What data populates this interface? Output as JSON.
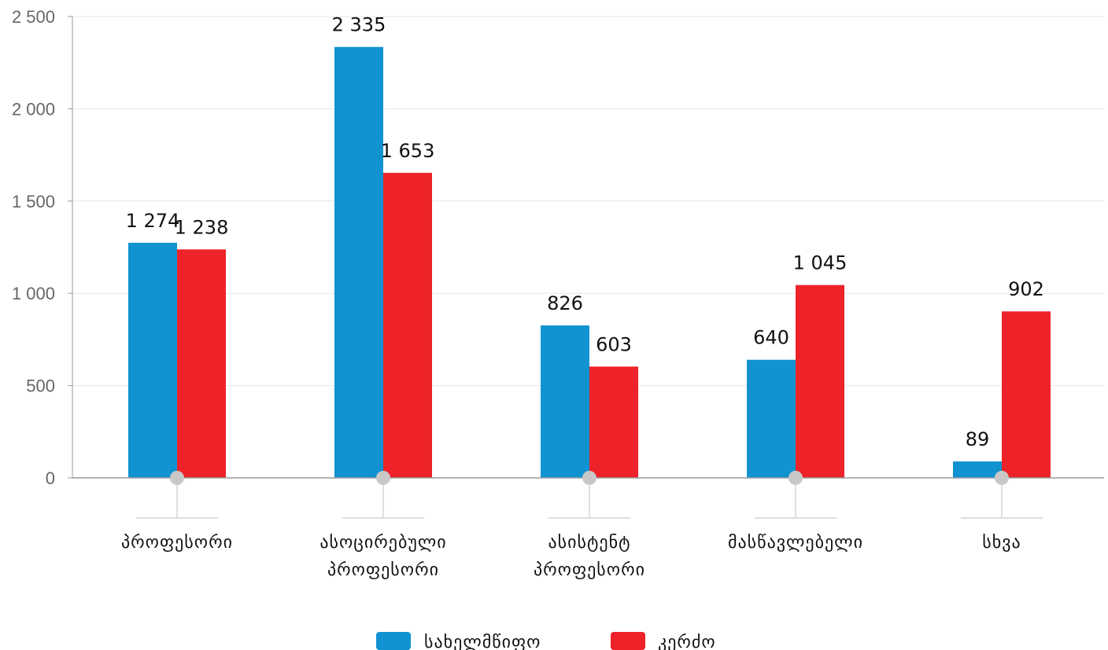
{
  "chart_data": {
    "type": "bar",
    "categories": [
      [
        "პროფესორი"
      ],
      [
        "ასოცირებული",
        "პროფესორი"
      ],
      [
        "ასისტენტ",
        "პროფესორი"
      ],
      [
        "მასწავლებელი"
      ],
      [
        "სხვა"
      ]
    ],
    "series": [
      {
        "name": "სახელმწიფო",
        "values": [
          1274,
          2335,
          826,
          640,
          89
        ],
        "labels": [
          "1 274",
          "2 335",
          "826",
          "640",
          "89"
        ],
        "color": "#1192d1"
      },
      {
        "name": "კერძო",
        "values": [
          1238,
          1653,
          603,
          1045,
          902
        ],
        "labels": [
          "1 238",
          "1 653",
          "603",
          "1 045",
          "902"
        ],
        "color": "#ee2229"
      }
    ],
    "yticks": [
      0,
      500,
      1000,
      1500,
      2000,
      2500
    ],
    "ytick_labels": [
      "0",
      "500",
      "1 000",
      "1 500",
      "2 000",
      "2 500"
    ],
    "ylim": [
      0,
      2500
    ],
    "grid": true,
    "legend_position": "bottom-center",
    "colors": {
      "grid": "#e6e6e6",
      "axis": "#9a9a9a",
      "marker": "#c8c8c8"
    }
  }
}
